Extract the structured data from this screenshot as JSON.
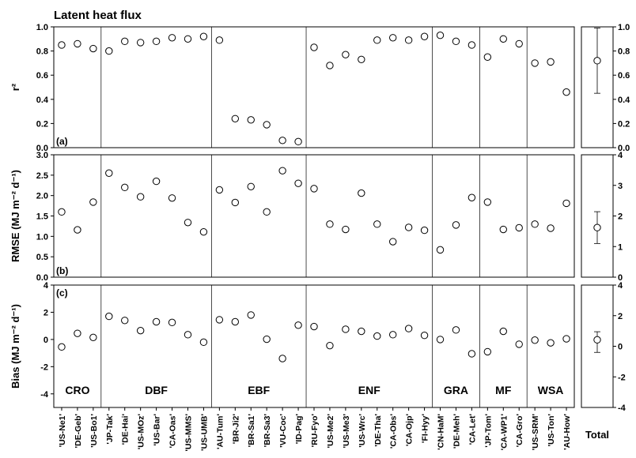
{
  "title": "Latent heat flux",
  "sites": [
    "'US-Ne1'",
    "'DE-Geb'",
    "'US-Bo1'",
    "'JP-Tak'",
    "'DE-Hai'",
    "'US-MOz'",
    "'US-Bar'",
    "'CA-Oas'",
    "'US-MMS'",
    "'US-UMB'",
    "'AU-Tum'",
    "'BR-Ji2'",
    "'BR-Sa1'",
    "'BR-Sa3'",
    "'VU-Coc'",
    "'ID-Pag'",
    "'RU-Fyo'",
    "'US-Me2'",
    "'US-Me3'",
    "'US-Wrc'",
    "'DE-Tha'",
    "'CA-Obs'",
    "'CA-Ojp'",
    "'FI-Hyy'",
    "'CN-HaM'",
    "'DE-Meh'",
    "'CA-Let'",
    "'JP-Tom'",
    "'CA-WP1'",
    "'CA-Gro'",
    "'US-SRM'",
    "'US-Ton'",
    "'AU-How'"
  ],
  "groups": [
    {
      "label": "CRO",
      "start": 0,
      "end": 2
    },
    {
      "label": "DBF",
      "start": 3,
      "end": 9
    },
    {
      "label": "EBF",
      "start": 10,
      "end": 15
    },
    {
      "label": "ENF",
      "start": 16,
      "end": 23
    },
    {
      "label": "GRA",
      "start": 24,
      "end": 26
    },
    {
      "label": "MF",
      "start": 27,
      "end": 29
    },
    {
      "label": "WSA",
      "start": 30,
      "end": 32
    }
  ],
  "total_label": "Total",
  "chart_data": [
    {
      "type": "scatter",
      "panel": "(a)",
      "ylabel": "r²",
      "ylim": [
        0,
        1.0
      ],
      "yticks": [
        "0.0",
        "0.2",
        "0.4",
        "0.6",
        "0.8",
        "1.0"
      ],
      "right_ylim": [
        0,
        1.0
      ],
      "right_yticks": [
        "0.0",
        "0.2",
        "0.4",
        "0.6",
        "0.8",
        "1.0"
      ],
      "values": [
        0.85,
        0.86,
        0.82,
        0.8,
        0.88,
        0.87,
        0.88,
        0.91,
        0.9,
        0.92,
        0.89,
        0.24,
        0.23,
        0.19,
        0.06,
        0.05,
        0.83,
        0.68,
        0.77,
        0.73,
        0.89,
        0.91,
        0.89,
        0.92,
        0.93,
        0.88,
        0.85,
        0.75,
        0.9,
        0.86,
        0.7,
        0.71,
        0.46
      ],
      "total": {
        "mean": 0.72,
        "low": 0.45,
        "high": 0.99
      }
    },
    {
      "type": "scatter",
      "panel": "(b)",
      "ylabel": "RMSE (MJ m⁻² d⁻¹)",
      "ylim": [
        0,
        3.0
      ],
      "yticks": [
        "0.0",
        "0.5",
        "1.0",
        "1.5",
        "2.0",
        "2.5",
        "3.0"
      ],
      "right_ylim": [
        0,
        4
      ],
      "right_yticks": [
        "0",
        "1",
        "2",
        "3",
        "4"
      ],
      "values": [
        1.6,
        1.16,
        1.84,
        2.55,
        2.2,
        1.97,
        2.35,
        1.94,
        1.34,
        1.11,
        2.14,
        1.83,
        2.22,
        1.6,
        2.61,
        2.3,
        2.17,
        1.3,
        1.17,
        2.06,
        1.3,
        0.87,
        1.22,
        1.15,
        0.67,
        1.28,
        1.95,
        1.84,
        1.17,
        1.21,
        1.3,
        1.2,
        1.81
      ],
      "total": {
        "mean": 1.62,
        "low": 1.1,
        "high": 2.14
      }
    },
    {
      "type": "scatter",
      "panel": "(c)",
      "ylabel": "Bias (MJ m⁻² d⁻¹)",
      "ylim": [
        -5,
        4
      ],
      "yticks": [
        "-4",
        "-2",
        "0",
        "2",
        "4"
      ],
      "right_ylim": [
        -4,
        4
      ],
      "right_yticks": [
        "-4",
        "-2",
        "0",
        "2",
        "4"
      ],
      "values": [
        -0.55,
        0.45,
        0.15,
        1.7,
        1.4,
        0.65,
        1.3,
        1.25,
        0.35,
        -0.2,
        1.45,
        1.3,
        1.8,
        0.02,
        -1.4,
        1.05,
        0.95,
        -0.45,
        0.75,
        0.6,
        0.25,
        0.35,
        0.8,
        0.3,
        0.0,
        0.7,
        -1.05,
        -0.9,
        0.6,
        -0.35,
        -0.05,
        -0.25,
        0.05
      ],
      "total": {
        "mean": 0.42,
        "low": -0.4,
        "high": 0.95
      }
    }
  ]
}
